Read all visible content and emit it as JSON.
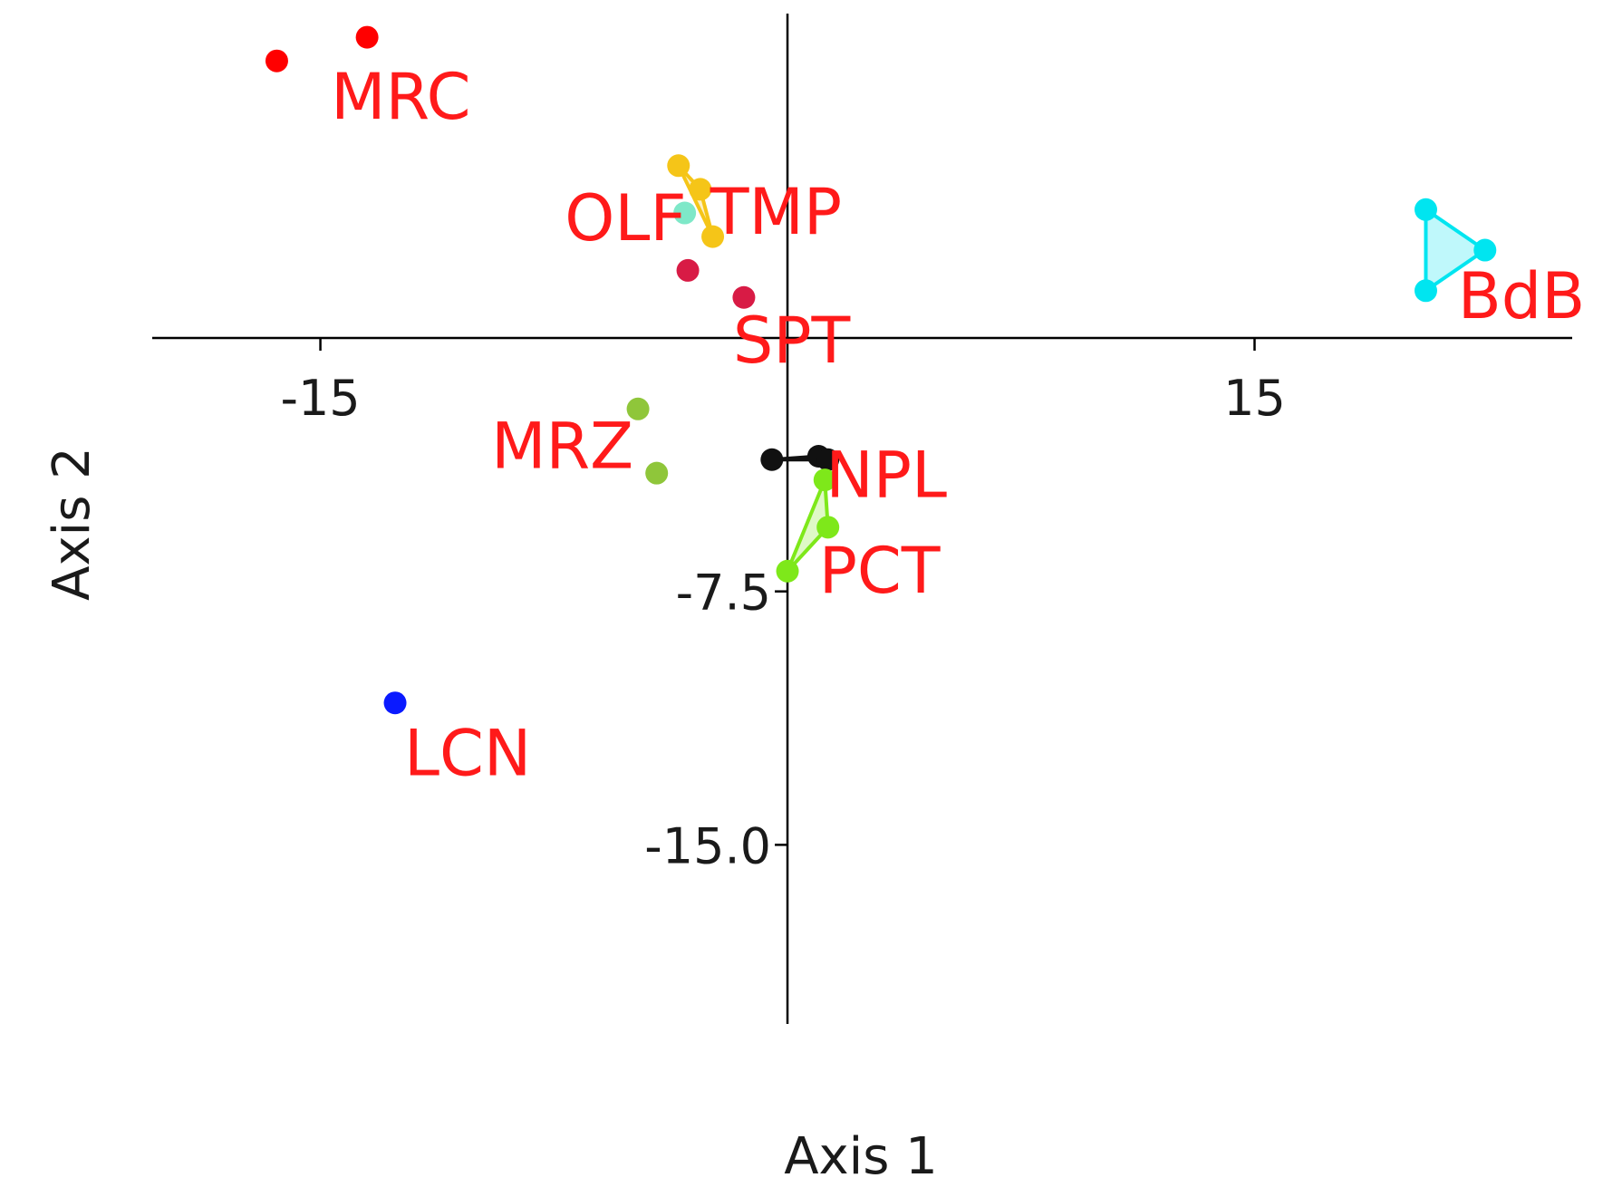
{
  "chart_data": {
    "type": "scatter",
    "title": "",
    "xlabel": "Axis 1",
    "ylabel": "Axis 2",
    "xlim": [
      -20.4,
      25.2
    ],
    "ylim": [
      -20.3,
      9.6
    ],
    "x_ticks": [
      {
        "value": -15,
        "label": "-15"
      },
      {
        "value": 15,
        "label": "15"
      }
    ],
    "y_ticks": [
      {
        "value": -7.5,
        "label": "-7.5"
      },
      {
        "value": -15.0,
        "label": "-15.0"
      }
    ],
    "grid": false,
    "legend": "none",
    "label_color": "#ff1a1a",
    "groups": [
      {
        "label": "MRC",
        "color": "#ff0000",
        "hull": false,
        "points": [
          {
            "x": -16.4,
            "y": 8.2
          },
          {
            "x": -13.5,
            "y": 8.9
          }
        ]
      },
      {
        "label": "TMP",
        "color": "#f5c518",
        "hull": true,
        "points": [
          {
            "x": -3.5,
            "y": 5.1
          },
          {
            "x": -2.8,
            "y": 4.4
          },
          {
            "x": -2.4,
            "y": 3.0
          }
        ]
      },
      {
        "label": "OLF",
        "color": "#7ee8c8",
        "hull": false,
        "points": [
          {
            "x": -3.3,
            "y": 3.7
          }
        ]
      },
      {
        "label": "SPT",
        "color": "#d81b45",
        "hull": false,
        "points": [
          {
            "x": -3.2,
            "y": 2.0
          },
          {
            "x": -1.4,
            "y": 1.2
          }
        ]
      },
      {
        "label": "BdB",
        "color": "#00e5f0",
        "hull": true,
        "points": [
          {
            "x": 20.5,
            "y": 3.8
          },
          {
            "x": 22.4,
            "y": 2.6
          },
          {
            "x": 20.5,
            "y": 1.4
          }
        ]
      },
      {
        "label": "MRZ",
        "color": "#8fc63a",
        "hull": false,
        "points": [
          {
            "x": -4.8,
            "y": -2.1
          },
          {
            "x": -4.2,
            "y": -4.0
          }
        ]
      },
      {
        "label": "NPL",
        "color": "#111111",
        "hull": true,
        "points": [
          {
            "x": -0.5,
            "y": -3.6
          },
          {
            "x": 1.0,
            "y": -3.5
          },
          {
            "x": 1.3,
            "y": -3.6
          }
        ]
      },
      {
        "label": "PCT",
        "color": "#7ee81a",
        "hull": true,
        "points": [
          {
            "x": 1.2,
            "y": -4.2
          },
          {
            "x": 1.3,
            "y": -5.6
          },
          {
            "x": 0.0,
            "y": -6.9
          }
        ]
      },
      {
        "label": "LCN",
        "color": "#0a1aff",
        "hull": false,
        "points": [
          {
            "x": -12.6,
            "y": -10.8
          }
        ]
      }
    ]
  }
}
